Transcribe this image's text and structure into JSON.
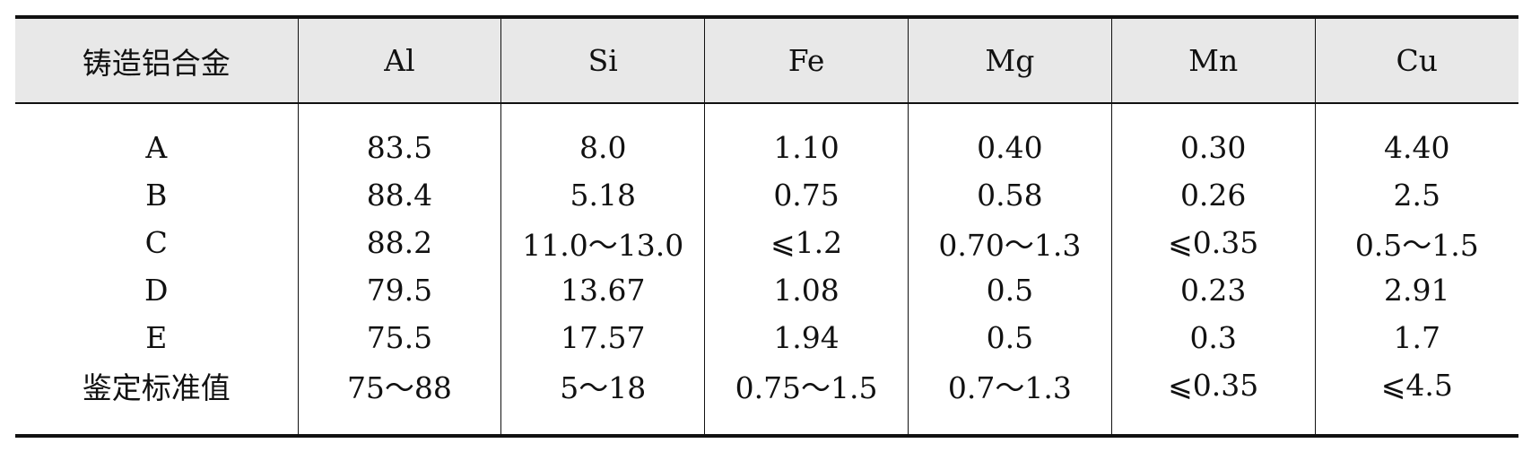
{
  "table": {
    "headers": [
      "铸造铝合金",
      "Al",
      "Si",
      "Fe",
      "Mg",
      "Mn",
      "Cu"
    ],
    "rows": [
      [
        "A",
        "83.5",
        "8.0",
        "1.10",
        "0.40",
        "0.30",
        "4.40"
      ],
      [
        "B",
        "88.4",
        "5.18",
        "0.75",
        "0.58",
        "0.26",
        "2.5"
      ],
      [
        "C",
        "88.2",
        "11.0～13.0",
        "⩽1.2",
        "0.70～1.3",
        "⩽0.35",
        "0.5～1.5"
      ],
      [
        "D",
        "79.5",
        "13.67",
        "1.08",
        "0.5",
        "0.23",
        "2.91"
      ],
      [
        "E",
        "75.5",
        "17.57",
        "1.94",
        "0.5",
        "0.3",
        "1.7"
      ],
      [
        "鉴定标准值",
        "75～88",
        "5～18",
        "0.75～1.5",
        "0.7～1.3",
        "⩽0.35",
        "⩽4.5"
      ]
    ]
  }
}
